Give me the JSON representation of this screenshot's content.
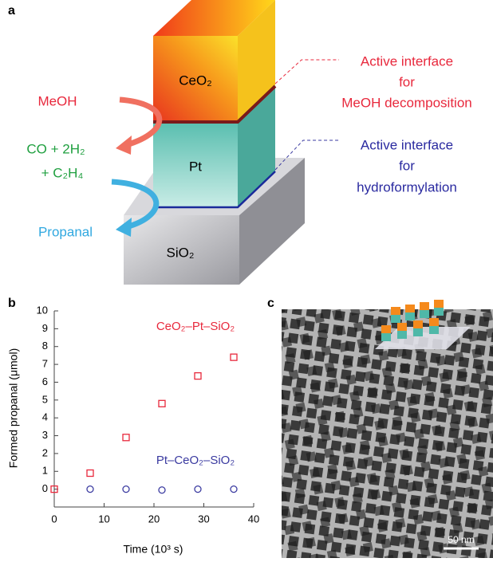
{
  "panel_a": {
    "label": "a",
    "blocks": [
      "CeO₂",
      "Pt",
      "SiO₂"
    ],
    "reactants": [
      "MeOH",
      "CO + 2H₂",
      "+ C₂H₄",
      "Propanal"
    ],
    "interface_top": [
      "Active interface",
      "for",
      "MeOH decomposition"
    ],
    "interface_bottom": [
      "Active interface",
      "for",
      "hydroformylation"
    ]
  },
  "panel_b": {
    "label": "b"
  },
  "chart_data": {
    "type": "scatter",
    "x_label": "Time (10³ s)",
    "y_label": "Formed propanal (μmol)",
    "xlim": [
      0,
      40
    ],
    "ylim": [
      -1,
      10
    ],
    "xticks": [
      0,
      10,
      20,
      30,
      40
    ],
    "yticks": [
      0,
      1,
      2,
      3,
      4,
      5,
      6,
      7,
      8,
      9,
      10
    ],
    "series": [
      {
        "name": "CeO₂–Pt–SiO₂",
        "color": "#e8283c",
        "marker": "square",
        "x": [
          0,
          7.2,
          14.4,
          21.6,
          28.8,
          36
        ],
        "values": [
          0,
          0.9,
          2.9,
          4.8,
          6.35,
          7.4
        ]
      },
      {
        "name": "Pt–CeO₂–SiO₂",
        "color": "#3a3aa0",
        "marker": "circle",
        "x": [
          7.2,
          14.4,
          21.6,
          28.8,
          36
        ],
        "values": [
          0,
          0,
          -0.05,
          0,
          0
        ]
      }
    ]
  },
  "panel_c": {
    "label": "c",
    "scale_bar": "50 nm"
  }
}
